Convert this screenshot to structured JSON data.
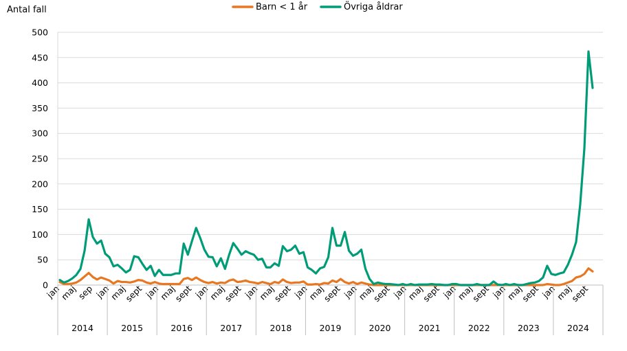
{
  "chart_data": {
    "type": "line",
    "ylabel": "Antal fall",
    "ylim": [
      0,
      500
    ],
    "yticks": [
      0,
      50,
      100,
      150,
      200,
      250,
      300,
      350,
      400,
      450,
      500
    ],
    "grid": true,
    "legend_position": "top-center",
    "month_labels": [
      "jan",
      "maj",
      "sep",
      "jan",
      "maj",
      "sept",
      "jan",
      "maj",
      "sept",
      "jan",
      "maj",
      "sept",
      "jan",
      "maj",
      "sept",
      "jan",
      "maj",
      "sept",
      "jan",
      "maj",
      "sept",
      "jan",
      "maj",
      "sept",
      "jan",
      "maj",
      "sept",
      "jan",
      "maj",
      "sept",
      "jan",
      "maj",
      "sept"
    ],
    "years": [
      "2014",
      "2015",
      "2016",
      "2017",
      "2018",
      "2019",
      "2020",
      "2021",
      "2022",
      "2023",
      "2024"
    ],
    "colors": {
      "barn": "#E87722",
      "ovriga": "#009B77"
    },
    "series": [
      {
        "name": "Barn < 1 år",
        "values": [
          6,
          2,
          2,
          3,
          5,
          10,
          17,
          24,
          16,
          11,
          15,
          12,
          9,
          3,
          8,
          6,
          6,
          5,
          7,
          10,
          9,
          5,
          3,
          6,
          3,
          2,
          2,
          2,
          2,
          2,
          12,
          14,
          10,
          15,
          10,
          6,
          4,
          6,
          3,
          5,
          4,
          9,
          11,
          6,
          7,
          9,
          6,
          5,
          3,
          6,
          4,
          2,
          6,
          4,
          11,
          6,
          4,
          5,
          5,
          7,
          1,
          1,
          2,
          1,
          4,
          3,
          9,
          6,
          12,
          6,
          3,
          6,
          2,
          5,
          3,
          1,
          0,
          0,
          0,
          0,
          0,
          0,
          0,
          0,
          0,
          0,
          0,
          0,
          0,
          0,
          0,
          0,
          0,
          0,
          0,
          0,
          0,
          0,
          0,
          0,
          0,
          0,
          0,
          0,
          0,
          0,
          0,
          0,
          0,
          0,
          0,
          0,
          0,
          0,
          0,
          0,
          0,
          0,
          2,
          1,
          0,
          0,
          2,
          5,
          8,
          15,
          17,
          22,
          33,
          27
        ]
      },
      {
        "name": "Övriga åldrar",
        "values": [
          10,
          5,
          8,
          13,
          20,
          32,
          68,
          130,
          95,
          82,
          88,
          62,
          55,
          37,
          40,
          33,
          25,
          30,
          57,
          55,
          42,
          30,
          38,
          18,
          30,
          20,
          20,
          20,
          23,
          23,
          82,
          60,
          87,
          113,
          93,
          70,
          56,
          55,
          37,
          53,
          32,
          60,
          83,
          72,
          60,
          67,
          63,
          60,
          50,
          52,
          35,
          35,
          43,
          38,
          77,
          67,
          70,
          78,
          62,
          65,
          35,
          30,
          23,
          33,
          36,
          55,
          113,
          78,
          78,
          105,
          68,
          58,
          62,
          70,
          32,
          12,
          2,
          5,
          3,
          2,
          2,
          1,
          0,
          2,
          0,
          2,
          0,
          1,
          1,
          1,
          2,
          1,
          1,
          0,
          0,
          2,
          2,
          0,
          0,
          0,
          0,
          2,
          0,
          0,
          0,
          7,
          1,
          0,
          2,
          0,
          2,
          0,
          0,
          2,
          4,
          5,
          8,
          15,
          38,
          22,
          20,
          23,
          25,
          40,
          60,
          85,
          160,
          270,
          462,
          390
        ]
      }
    ]
  }
}
